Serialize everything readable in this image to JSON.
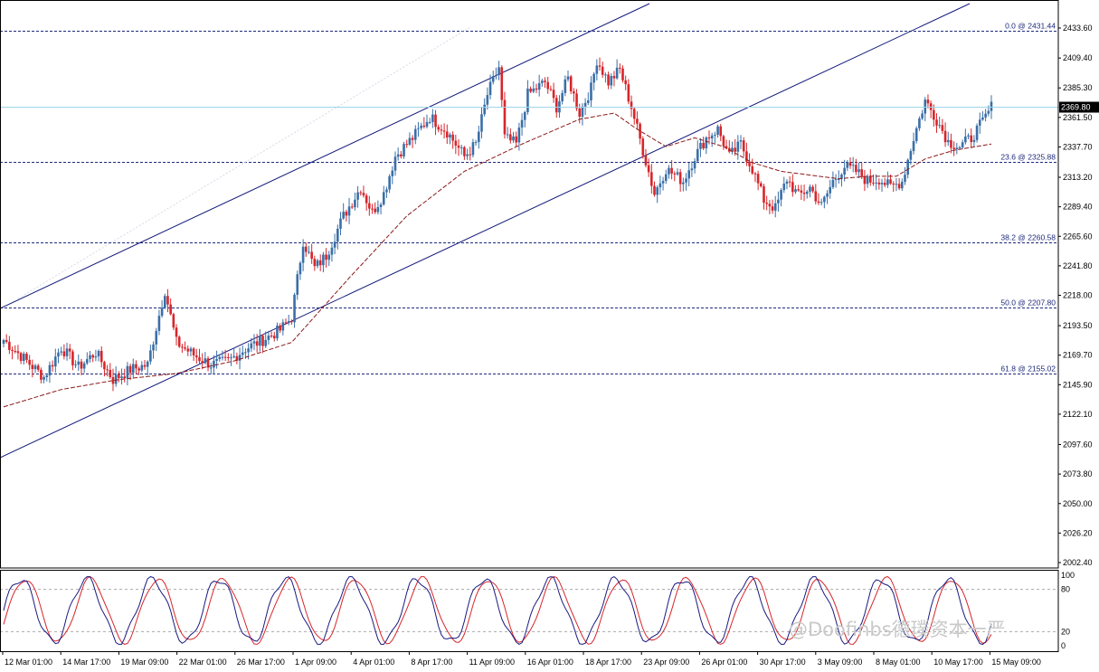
{
  "chart_data": {
    "type": "candlestick",
    "symbol_context": "Gold price, H4 candles with moving average, Fibonacci retracement, trend channel and stochastic oscillator",
    "y_ticks": [
      "2433.60",
      "2409.40",
      "2385.30",
      "2361.50",
      "2337.70",
      "2313.20",
      "2289.40",
      "2265.60",
      "2241.80",
      "2218.00",
      "2193.50",
      "2169.70",
      "2145.90",
      "2122.10",
      "2097.60",
      "2073.80",
      "2050.00",
      "2026.20",
      "2002.40"
    ],
    "ylim": [
      2002.4,
      2433.6
    ],
    "last_price": "2369.80",
    "x_ticks": [
      "12 Mar 01:00",
      "14 Mar 17:00",
      "19 Mar 09:00",
      "22 Mar 01:00",
      "26 Mar 17:00",
      "1 Apr 09:00",
      "4 Apr 01:00",
      "8 Apr 17:00",
      "11 Apr 09:00",
      "16 Apr 01:00",
      "18 Apr 17:00",
      "23 Apr 09:00",
      "26 Apr 01:00",
      "30 Apr 17:00",
      "3 May 09:00",
      "8 May 01:00",
      "10 May 17:00",
      "15 May 09:00"
    ],
    "fib_levels": [
      {
        "label": "0.0 @ 2431.44",
        "value": 2431.44
      },
      {
        "label": "23.6 @ 2325.88",
        "value": 2325.88
      },
      {
        "label": "38.2 @ 2260.58",
        "value": 2260.58
      },
      {
        "label": "50.0 @ 2207.80",
        "value": 2207.8
      },
      {
        "label": "61.8 @ 2155.02",
        "value": 2155.02
      }
    ],
    "anchors": [
      [
        0,
        2182
      ],
      [
        8,
        2165
      ],
      [
        14,
        2152
      ],
      [
        20,
        2176
      ],
      [
        26,
        2160
      ],
      [
        32,
        2172
      ],
      [
        38,
        2150
      ],
      [
        44,
        2158
      ],
      [
        50,
        2162
      ],
      [
        56,
        2222
      ],
      [
        60,
        2180
      ],
      [
        66,
        2170
      ],
      [
        72,
        2162
      ],
      [
        78,
        2165
      ],
      [
        84,
        2175
      ],
      [
        90,
        2182
      ],
      [
        96,
        2190
      ],
      [
        100,
        2200
      ],
      [
        104,
        2262
      ],
      [
        108,
        2240
      ],
      [
        112,
        2250
      ],
      [
        118,
        2282
      ],
      [
        124,
        2305
      ],
      [
        128,
        2285
      ],
      [
        132,
        2300
      ],
      [
        136,
        2330
      ],
      [
        142,
        2345
      ],
      [
        148,
        2362
      ],
      [
        154,
        2350
      ],
      [
        160,
        2330
      ],
      [
        164,
        2340
      ],
      [
        168,
        2380
      ],
      [
        172,
        2402
      ],
      [
        174,
        2345
      ],
      [
        178,
        2340
      ],
      [
        182,
        2380
      ],
      [
        188,
        2390
      ],
      [
        192,
        2370
      ],
      [
        196,
        2393
      ],
      [
        200,
        2365
      ],
      [
        204,
        2385
      ],
      [
        206,
        2408
      ],
      [
        210,
        2390
      ],
      [
        214,
        2400
      ],
      [
        218,
        2370
      ],
      [
        222,
        2335
      ],
      [
        226,
        2300
      ],
      [
        230,
        2320
      ],
      [
        236,
        2310
      ],
      [
        240,
        2330
      ],
      [
        244,
        2345
      ],
      [
        248,
        2352
      ],
      [
        252,
        2330
      ],
      [
        256,
        2340
      ],
      [
        260,
        2320
      ],
      [
        264,
        2295
      ],
      [
        268,
        2288
      ],
      [
        272,
        2312
      ],
      [
        276,
        2298
      ],
      [
        280,
        2305
      ],
      [
        284,
        2290
      ],
      [
        288,
        2310
      ],
      [
        292,
        2322
      ],
      [
        296,
        2318
      ],
      [
        300,
        2310
      ],
      [
        304,
        2312
      ],
      [
        308,
        2305
      ],
      [
        312,
        2310
      ],
      [
        316,
        2345
      ],
      [
        320,
        2375
      ],
      [
        324,
        2360
      ],
      [
        328,
        2342
      ],
      [
        332,
        2338
      ],
      [
        336,
        2345
      ],
      [
        340,
        2358
      ],
      [
        343,
        2370
      ]
    ],
    "ma_series": [
      [
        0,
        2128
      ],
      [
        20,
        2142
      ],
      [
        40,
        2150
      ],
      [
        60,
        2155
      ],
      [
        80,
        2165
      ],
      [
        100,
        2180
      ],
      [
        120,
        2232
      ],
      [
        140,
        2282
      ],
      [
        160,
        2318
      ],
      [
        180,
        2340
      ],
      [
        200,
        2360
      ],
      [
        212,
        2365
      ],
      [
        220,
        2352
      ],
      [
        230,
        2338
      ],
      [
        240,
        2345
      ],
      [
        250,
        2338
      ],
      [
        260,
        2325
      ],
      [
        270,
        2318
      ],
      [
        280,
        2315
      ],
      [
        290,
        2312
      ],
      [
        300,
        2314
      ],
      [
        310,
        2314
      ],
      [
        320,
        2328
      ],
      [
        330,
        2335
      ],
      [
        343,
        2340
      ]
    ],
    "stochastic": {
      "levels": [
        "100",
        "80",
        "20",
        "0"
      ],
      "cycle_length": 23
    }
  },
  "watermark": "@Doofinbs德璞资本一严",
  "colors": {
    "bull": "#3a6fa8",
    "bear": "#d6262b",
    "fib_line": "#1f2a7a",
    "channel": "#13197a",
    "ma": "#8b1a1a",
    "last_price_line": "#9fd4e8",
    "stoch_main": "#1a1a80",
    "stoch_signal": "#d6262b"
  }
}
